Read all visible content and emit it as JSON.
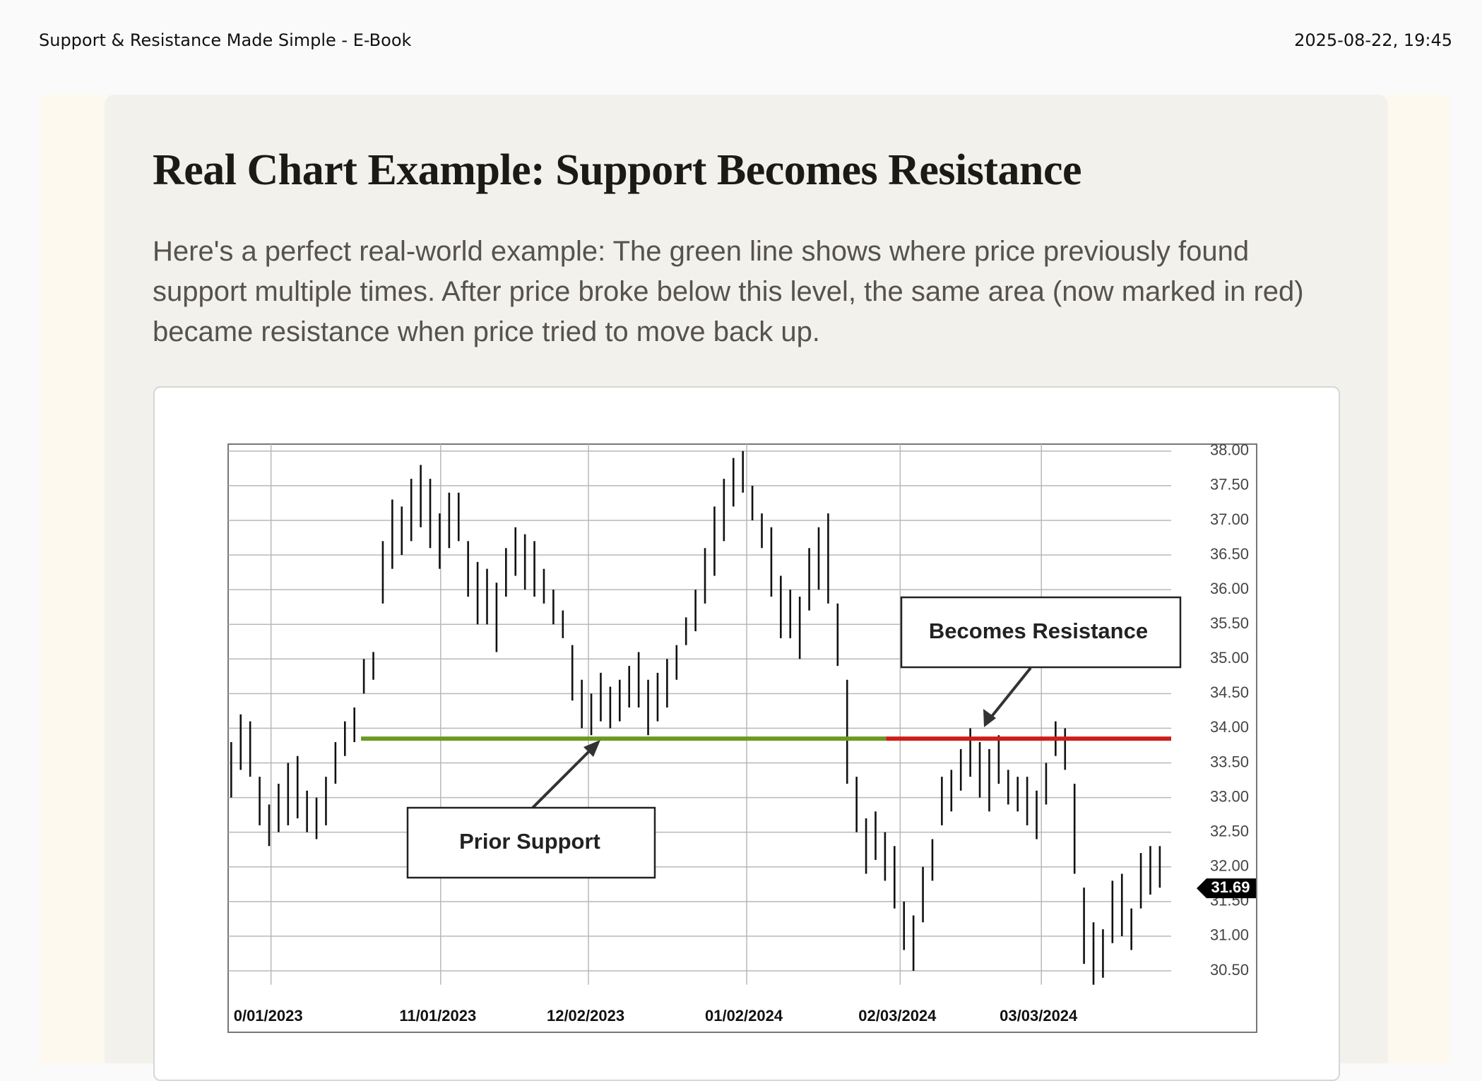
{
  "header": {
    "title": "Support & Resistance Made Simple - E-Book",
    "timestamp": "2025-08-22, 19:45"
  },
  "article": {
    "title": "Real Chart Example: Support Becomes Resistance",
    "paragraph": "Here's a perfect real-world example: The green line shows where price previously found support multiple times. After price broke below this level, the same area (now marked in red) became resistance when price tried to move back up."
  },
  "chart_data": {
    "type": "ohlc",
    "low": [
      33.0,
      33.4,
      33.3,
      32.6,
      32.3,
      32.5,
      32.6,
      32.7,
      32.5,
      32.4,
      32.6,
      33.2,
      33.6,
      33.8,
      34.5,
      34.7,
      35.8,
      36.3,
      36.5,
      36.7,
      36.9,
      36.6,
      36.3,
      36.6,
      36.7,
      35.9,
      35.5,
      35.5,
      35.1,
      35.9,
      36.2,
      36.0,
      35.9,
      35.8,
      35.5,
      35.3,
      34.4,
      34.0,
      33.9,
      34.1,
      34.0,
      34.1,
      34.3,
      34.3,
      33.9,
      34.1,
      34.3,
      34.7,
      35.2,
      35.4,
      35.8,
      36.2,
      36.7,
      37.2,
      37.4,
      37.0,
      36.6,
      35.9,
      35.3,
      35.3,
      35.0,
      35.7,
      36.0,
      35.8,
      34.9,
      33.2,
      32.5,
      31.9,
      32.1,
      31.8,
      31.4,
      30.8,
      30.5,
      31.2,
      31.8,
      32.6,
      32.8,
      33.1,
      33.3,
      33.0,
      32.8,
      33.2,
      32.9,
      32.8,
      32.6,
      32.4,
      32.9,
      33.6,
      33.4,
      31.9,
      30.6,
      30.3,
      30.4,
      30.9,
      31.0,
      30.8,
      31.4,
      31.6,
      31.7
    ],
    "high": [
      33.8,
      34.2,
      34.1,
      33.3,
      32.9,
      33.2,
      33.5,
      33.6,
      33.1,
      33.0,
      33.3,
      33.8,
      34.1,
      34.3,
      35.0,
      35.1,
      36.7,
      37.3,
      37.2,
      37.6,
      37.8,
      37.6,
      37.1,
      37.4,
      37.4,
      36.7,
      36.4,
      36.3,
      36.1,
      36.6,
      36.9,
      36.8,
      36.7,
      36.3,
      36.0,
      35.7,
      35.2,
      34.7,
      34.5,
      34.8,
      34.6,
      34.7,
      34.9,
      35.1,
      34.7,
      34.8,
      35.0,
      35.2,
      35.6,
      36.0,
      36.6,
      37.2,
      37.6,
      37.9,
      38.0,
      37.5,
      37.1,
      36.9,
      36.2,
      36.0,
      35.9,
      36.6,
      36.9,
      37.1,
      35.8,
      34.7,
      33.3,
      32.7,
      32.8,
      32.5,
      32.3,
      31.5,
      31.3,
      32.0,
      32.4,
      33.3,
      33.4,
      33.7,
      34.0,
      33.8,
      33.7,
      33.9,
      33.4,
      33.3,
      33.3,
      33.1,
      33.5,
      34.1,
      34.0,
      33.2,
      31.7,
      31.2,
      31.1,
      31.8,
      31.9,
      31.4,
      32.2,
      32.3,
      32.3
    ],
    "color": "#111111",
    "xlim": [
      -0.3,
      99.2
    ],
    "xticks": [
      {
        "value": 4.2,
        "label": "0/01/2023"
      },
      {
        "value": 22.1,
        "label": "11/01/2023"
      },
      {
        "value": 37.7,
        "label": "12/02/2023"
      },
      {
        "value": 54.4,
        "label": "01/02/2024"
      },
      {
        "value": 70.6,
        "label": "02/03/2024"
      },
      {
        "value": 85.5,
        "label": "03/03/2024"
      }
    ],
    "ylim": [
      30.3,
      38.1
    ],
    "yticks": [
      {
        "value": 30.5,
        "label": "30.50"
      },
      {
        "value": 31,
        "label": "31.00"
      },
      {
        "value": 31.5,
        "label": "31.50"
      },
      {
        "value": 32,
        "label": "32.00"
      },
      {
        "value": 32.5,
        "label": "32.50"
      },
      {
        "value": 33,
        "label": "33.00"
      },
      {
        "value": 33.5,
        "label": "33.50"
      },
      {
        "value": 34,
        "label": "34.00"
      },
      {
        "value": 34.5,
        "label": "34.50"
      },
      {
        "value": 35,
        "label": "35.00"
      },
      {
        "value": 35.5,
        "label": "35.50"
      },
      {
        "value": 36,
        "label": "36.00"
      },
      {
        "value": 36.5,
        "label": "36.50"
      },
      {
        "value": 37,
        "label": "37.00"
      },
      {
        "value": 37.5,
        "label": "37.50"
      },
      {
        "value": 38,
        "label": "38.00"
      }
    ],
    "grid": true,
    "levels": [
      {
        "value": 33.85,
        "from": 13.7,
        "to": 69.1,
        "color": "#6b9a22"
      },
      {
        "value": 33.85,
        "from": 69.1,
        "to": 99.2,
        "color": "#cc1f1a"
      }
    ],
    "last_price": 31.69,
    "annotations": [
      "Prior Support",
      "Becomes Resistance"
    ]
  }
}
